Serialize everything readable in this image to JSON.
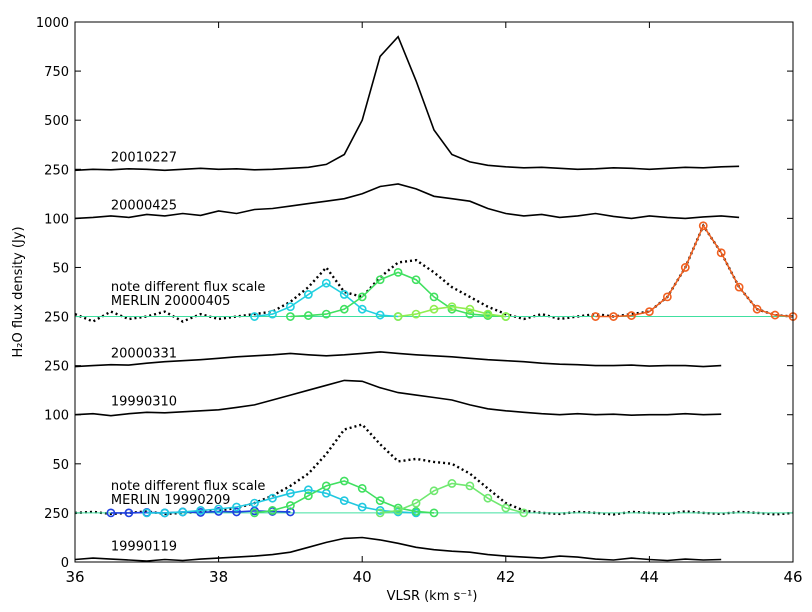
{
  "chart_data": {
    "type": "line",
    "x_label": "VLSR (km s⁻¹)",
    "y_label": "H₂O  flux density (Jy)",
    "xlim": [
      36,
      46
    ],
    "xticks": [
      36,
      38,
      40,
      42,
      44,
      46
    ],
    "ylim": [
      0,
      11
    ],
    "yticks": [
      {
        "value": 0,
        "label": "0"
      },
      {
        "value": 1,
        "label": "250"
      },
      {
        "value": 2,
        "label": "50"
      },
      {
        "value": 3,
        "label": "100"
      },
      {
        "value": 4,
        "label": "250"
      },
      {
        "value": 5,
        "label": "250"
      },
      {
        "value": 6,
        "label": "50"
      },
      {
        "value": 7,
        "label": "100"
      },
      {
        "value": 8,
        "label": "250"
      },
      {
        "value": 9,
        "label": "500"
      },
      {
        "value": 10,
        "label": "750"
      },
      {
        "value": 11,
        "label": "1000"
      }
    ],
    "x": [
      36,
      36.25,
      36.5,
      36.75,
      37,
      37.25,
      37.5,
      37.75,
      38,
      38.25,
      38.5,
      38.75,
      39,
      39.25,
      39.5,
      39.75,
      40,
      40.25,
      40.5,
      40.75,
      41,
      41.25,
      41.5,
      41.75,
      42,
      42.25,
      42.5,
      42.75,
      43,
      43.25,
      43.5,
      43.75,
      44,
      44.25,
      44.5,
      44.75,
      45,
      45.25
    ],
    "series": [
      {
        "name": "20010227",
        "color": "#000000",
        "style": "solid",
        "values": [
          7.98,
          8.0,
          7.99,
          8.01,
          8.0,
          7.98,
          8.0,
          8.02,
          8.0,
          8.01,
          7.99,
          8.0,
          8.02,
          8.04,
          8.1,
          8.3,
          9.0,
          10.3,
          10.7,
          9.8,
          8.8,
          8.3,
          8.15,
          8.08,
          8.05,
          8.03,
          8.04,
          8.02,
          8.0,
          8.01,
          8.03,
          8.02,
          8.0,
          8.02,
          8.04,
          8.03,
          8.05,
          8.06
        ]
      },
      {
        "name": "20000425",
        "color": "#000000",
        "style": "solid",
        "values": [
          7.0,
          7.02,
          7.05,
          7.02,
          7.08,
          7.05,
          7.1,
          7.06,
          7.15,
          7.1,
          7.18,
          7.2,
          7.25,
          7.3,
          7.35,
          7.4,
          7.5,
          7.65,
          7.7,
          7.6,
          7.45,
          7.4,
          7.35,
          7.2,
          7.1,
          7.05,
          7.08,
          7.02,
          7.05,
          7.1,
          7.04,
          7.0,
          7.05,
          7.02,
          7.0,
          7.03,
          7.05,
          7.02
        ]
      },
      {
        "name": "MERLIN 20000405",
        "note": "note different flux scale",
        "color": "#000000",
        "style": "dotted",
        "x": [
          36,
          36.25,
          36.5,
          36.75,
          37,
          37.25,
          37.5,
          37.75,
          38,
          38.25,
          38.5,
          38.75,
          39,
          39.25,
          39.5,
          39.75,
          40,
          40.25,
          40.5,
          40.75,
          41,
          41.25,
          41.5,
          41.75,
          42,
          42.25,
          42.5,
          42.75,
          43,
          43.25,
          43.5,
          43.75,
          44,
          44.25,
          44.5,
          44.75,
          45,
          45.25,
          45.5,
          45.75,
          46
        ],
        "values": [
          5.05,
          4.9,
          5.1,
          4.95,
          5.0,
          5.1,
          4.9,
          5.05,
          4.95,
          5.0,
          5.05,
          5.1,
          5.3,
          5.6,
          6.0,
          5.5,
          5.4,
          5.8,
          6.1,
          6.15,
          5.9,
          5.6,
          5.4,
          5.2,
          5.05,
          4.95,
          5.05,
          4.95,
          5.0,
          5.05,
          5.0,
          5.05,
          5.1,
          5.4,
          6.0,
          6.85,
          6.3,
          5.6,
          5.15,
          5.03,
          5.0
        ]
      },
      {
        "color": "#40e0a0",
        "style": "plain",
        "x": [
          36,
          46
        ],
        "values": [
          5,
          5
        ]
      },
      {
        "color": "#20d0e0",
        "style": "markers",
        "x": [
          38.5,
          38.75,
          39,
          39.25,
          39.5,
          39.75,
          40,
          40.25,
          40.5
        ],
        "values": [
          5.0,
          5.05,
          5.2,
          5.45,
          5.68,
          5.45,
          5.15,
          5.03,
          5.0
        ]
      },
      {
        "color": "#40e060",
        "style": "markers",
        "x": [
          39,
          39.25,
          39.5,
          39.75,
          40,
          40.25,
          40.5,
          40.75,
          41,
          41.25,
          41.5,
          41.75,
          42
        ],
        "values": [
          5.0,
          5.02,
          5.05,
          5.15,
          5.4,
          5.75,
          5.9,
          5.75,
          5.4,
          5.15,
          5.05,
          5.02,
          5.0
        ]
      },
      {
        "color": "#90ee50",
        "style": "markers",
        "x": [
          40.5,
          40.75,
          41,
          41.25,
          41.5,
          41.75,
          42
        ],
        "values": [
          5.0,
          5.05,
          5.15,
          5.2,
          5.15,
          5.05,
          5.0
        ]
      },
      {
        "color": "#f06020",
        "style": "markers",
        "x": [
          43.25,
          43.5,
          43.75,
          44,
          44.25,
          44.5,
          44.75,
          45,
          45.25,
          45.5,
          45.75,
          46
        ],
        "values": [
          5.0,
          5.0,
          5.02,
          5.1,
          5.4,
          6.0,
          6.85,
          6.3,
          5.6,
          5.15,
          5.03,
          5.0
        ]
      },
      {
        "name": "20000331",
        "color": "#000000",
        "style": "solid",
        "values": [
          3.98,
          4.0,
          4.02,
          4.01,
          4.05,
          4.08,
          4.1,
          4.12,
          4.15,
          4.18,
          4.2,
          4.22,
          4.25,
          4.22,
          4.2,
          4.22,
          4.25,
          4.28,
          4.25,
          4.22,
          4.2,
          4.18,
          4.15,
          4.12,
          4.1,
          4.08,
          4.05,
          4.03,
          4.02,
          4.0,
          4.0,
          4.01,
          3.99,
          4.0,
          4.0,
          3.98,
          4.0,
          null
        ]
      },
      {
        "name": "19990310",
        "color": "#000000",
        "style": "solid",
        "values": [
          3.0,
          3.02,
          2.98,
          3.02,
          3.05,
          3.04,
          3.06,
          3.08,
          3.1,
          3.15,
          3.2,
          3.3,
          3.4,
          3.5,
          3.6,
          3.7,
          3.68,
          3.55,
          3.45,
          3.4,
          3.35,
          3.3,
          3.2,
          3.12,
          3.08,
          3.05,
          3.02,
          3.0,
          3.02,
          3.0,
          3.01,
          2.99,
          3.0,
          3.0,
          3.02,
          3.0,
          3.01,
          null
        ]
      },
      {
        "name": "MERLIN 19990209",
        "note": "note different flux scale",
        "color": "#000000",
        "style": "dotted",
        "x": [
          36,
          36.25,
          36.5,
          36.75,
          37,
          37.25,
          37.5,
          37.75,
          38,
          38.25,
          38.5,
          38.75,
          39,
          39.25,
          39.5,
          39.75,
          40,
          40.25,
          40.5,
          40.75,
          41,
          41.25,
          41.5,
          41.75,
          42,
          42.25,
          42.5,
          42.75,
          43,
          43.25,
          43.5,
          43.75,
          44,
          44.25,
          44.5,
          44.75,
          45,
          45.25,
          45.5,
          45.75,
          46
        ],
        "values": [
          1.0,
          1.02,
          0.98,
          1.0,
          1.03,
          0.98,
          1.0,
          1.02,
          1.05,
          1.1,
          1.2,
          1.35,
          1.55,
          1.8,
          2.2,
          2.7,
          2.8,
          2.4,
          2.05,
          2.1,
          2.04,
          2.0,
          1.8,
          1.5,
          1.2,
          1.05,
          1.0,
          0.98,
          1.02,
          1.0,
          0.97,
          1.02,
          1.0,
          0.98,
          1.03,
          1.0,
          0.98,
          1.02,
          1.0,
          0.97,
          1.0
        ]
      },
      {
        "color": "#40e0a0",
        "style": "plain",
        "x": [
          36,
          46
        ],
        "values": [
          1,
          1
        ]
      },
      {
        "color": "#2040e0",
        "style": "markers",
        "x": [
          36.5,
          36.75,
          37,
          37.25,
          37.5,
          37.75,
          38,
          38.25,
          38.5,
          38.75,
          39
        ],
        "values": [
          1.0,
          1.0,
          1.01,
          1.0,
          1.02,
          1.01,
          1.03,
          1.02,
          1.04,
          1.03,
          1.02
        ]
      },
      {
        "color": "#20c8e0",
        "style": "markers",
        "x": [
          37,
          37.25,
          37.5,
          37.75,
          38,
          38.25,
          38.5,
          38.75,
          39,
          39.25,
          39.5,
          39.75,
          40,
          40.25,
          40.5,
          40.75
        ],
        "values": [
          1.0,
          1.0,
          1.02,
          1.05,
          1.08,
          1.12,
          1.2,
          1.3,
          1.4,
          1.47,
          1.4,
          1.25,
          1.12,
          1.05,
          1.02,
          1.0
        ]
      },
      {
        "color": "#40e060",
        "style": "markers",
        "x": [
          38.5,
          38.75,
          39,
          39.25,
          39.5,
          39.75,
          40,
          40.25,
          40.5,
          40.75,
          41
        ],
        "values": [
          1.0,
          1.05,
          1.15,
          1.35,
          1.55,
          1.65,
          1.5,
          1.25,
          1.1,
          1.03,
          1.0
        ]
      },
      {
        "color": "#70e870",
        "style": "markers",
        "x": [
          40.25,
          40.5,
          40.75,
          41,
          41.25,
          41.5,
          41.75,
          42,
          42.25
        ],
        "values": [
          1.0,
          1.05,
          1.2,
          1.45,
          1.6,
          1.55,
          1.3,
          1.1,
          1.0
        ]
      },
      {
        "name": "19990119",
        "color": "#000000",
        "style": "solid",
        "values": [
          0.05,
          0.08,
          0.06,
          0.04,
          0.02,
          0.05,
          0.03,
          0.06,
          0.08,
          0.1,
          0.12,
          0.15,
          0.2,
          0.3,
          0.4,
          0.48,
          0.5,
          0.45,
          0.38,
          0.3,
          0.25,
          0.22,
          0.2,
          0.15,
          0.12,
          0.1,
          0.08,
          0.12,
          0.1,
          0.06,
          0.04,
          0.08,
          0.05,
          0.03,
          0.06,
          0.04,
          0.05,
          null
        ]
      }
    ]
  }
}
